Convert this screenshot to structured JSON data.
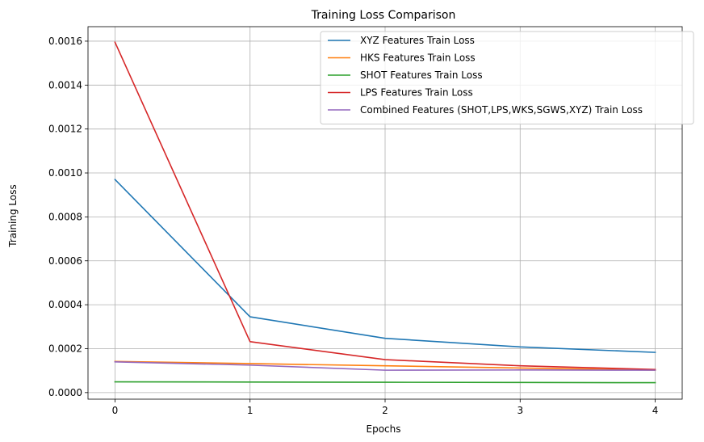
{
  "chart_data": {
    "type": "line",
    "title": "Training Loss Comparison",
    "xlabel": "Epochs",
    "ylabel": "Training Loss",
    "x": [
      0,
      1,
      2,
      3,
      4
    ],
    "xlim": [
      -0.2,
      4.2
    ],
    "ylim": [
      -3e-05,
      0.001666
    ],
    "xticks": [
      0,
      1,
      2,
      3,
      4
    ],
    "xtick_labels": [
      "0",
      "1",
      "2",
      "3",
      "4"
    ],
    "yticks": [
      0.0,
      0.0002,
      0.0004,
      0.0006,
      0.0008,
      0.001,
      0.0012,
      0.0014,
      0.0016
    ],
    "ytick_labels": [
      "0.0000",
      "0.0002",
      "0.0004",
      "0.0006",
      "0.0008",
      "0.0010",
      "0.0012",
      "0.0014",
      "0.0016"
    ],
    "grid": true,
    "legend_position": "top-right",
    "series": [
      {
        "name": "XYZ Features Train Loss",
        "color": "#1f77b4",
        "values": [
          0.00097,
          0.000345,
          0.000247,
          0.000208,
          0.000183
        ]
      },
      {
        "name": "HKS Features Train Loss",
        "color": "#ff7f0e",
        "values": [
          0.000142,
          0.000132,
          0.000122,
          0.000112,
          0.000102
        ]
      },
      {
        "name": "SHOT Features Train Loss",
        "color": "#2ca02c",
        "values": [
          4.9e-05,
          4.8e-05,
          4.7e-05,
          4.6e-05,
          4.5e-05
        ]
      },
      {
        "name": "LPS Features Train Loss",
        "color": "#d62728",
        "values": [
          0.001595,
          0.000232,
          0.00015,
          0.000122,
          0.000105
        ]
      },
      {
        "name": "Combined Features (SHOT,LPS,WKS,SGWS,XYZ) Train Loss",
        "color": "#9467bd",
        "values": [
          0.00014,
          0.000125,
          0.000102,
          0.000103,
          0.000102
        ]
      }
    ]
  }
}
